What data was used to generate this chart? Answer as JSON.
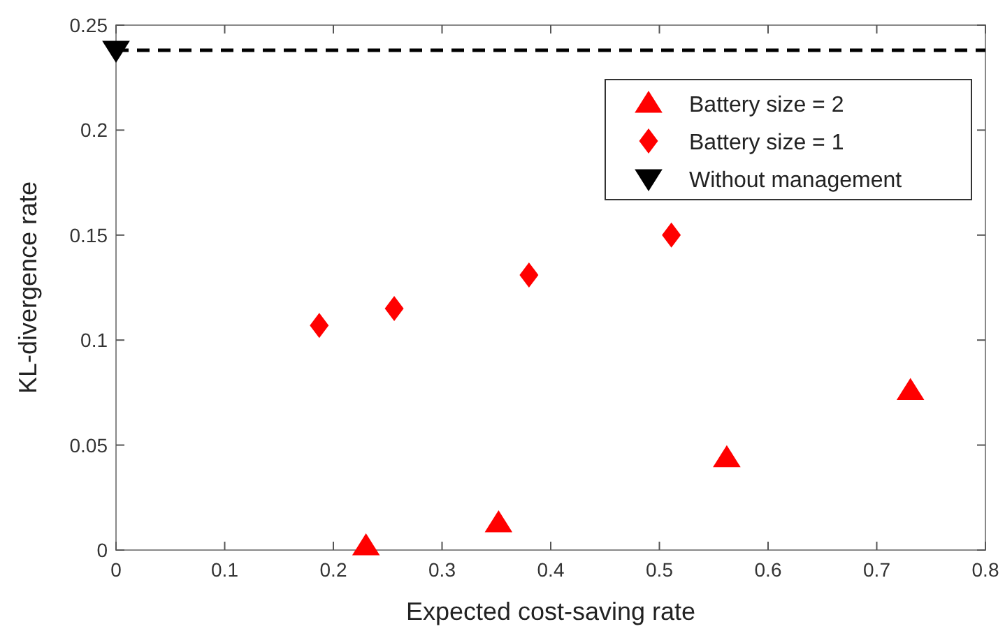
{
  "chart_data": {
    "type": "scatter",
    "xlabel": "Expected cost-saving rate",
    "ylabel": "KL-divergence rate",
    "xlim": [
      0,
      0.8
    ],
    "xticks": [
      0,
      0.1,
      0.2,
      0.3,
      0.4,
      0.5,
      0.6,
      0.7,
      0.8
    ],
    "ylim": [
      0,
      0.25
    ],
    "yticks": [
      0,
      0.05,
      0.1,
      0.15,
      0.2,
      0.25
    ],
    "grid": false,
    "legend": "top right",
    "series": [
      {
        "name": "Battery size = 2",
        "color": "#ff0000",
        "marker": "triangle",
        "x": [
          0.23,
          0.352,
          0.562,
          0.731
        ],
        "values": [
          0.002,
          0.013,
          0.044,
          0.076
        ]
      },
      {
        "name": "Battery size = 1",
        "color": "#ff0000",
        "marker": "diamond",
        "x": [
          0.187,
          0.256,
          0.38,
          0.511
        ],
        "values": [
          0.107,
          0.115,
          0.131,
          0.15
        ]
      },
      {
        "name": "Without management",
        "color": "#000000",
        "marker": "triangle-down",
        "x": [
          0
        ],
        "values": [
          0.238
        ]
      }
    ],
    "ref_lines": [
      {
        "axis": "y",
        "value": 0.238,
        "color": "#000000",
        "line_style": "dashed"
      }
    ]
  }
}
